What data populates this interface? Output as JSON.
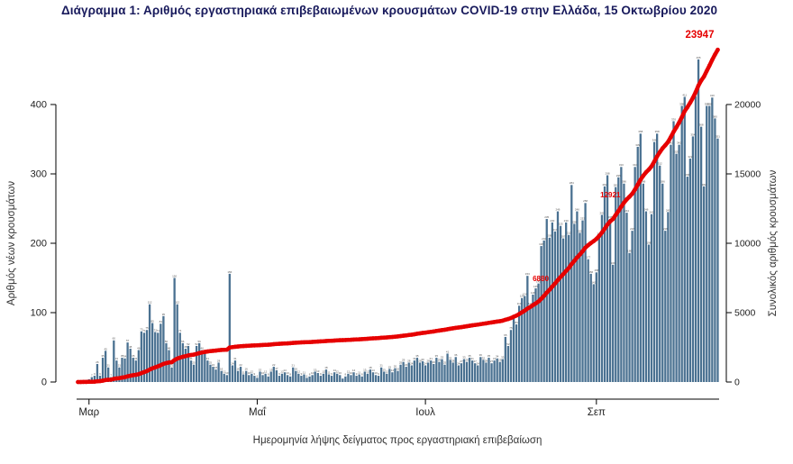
{
  "title": "Διάγραμμα 1: Αριθμός εργαστηριακά επιβεβαιωμένων κρουσμάτων COVID-19 στην Ελλάδα, 15 Οκτωβρίου 2020",
  "chart_data": {
    "type": "bar",
    "secondary_type": "line",
    "xlabel": "Ημερομηνία λήψης δείγματος προς εργαστηριακή επιβεβαίωση",
    "ylabel_left": "Αριθμός νέων κρουσμάτων",
    "ylabel_right": "Συνολικός αριθμός κρουσμάτων",
    "x_start_date": "2020-02-26",
    "x_end_date": "2020-10-15",
    "x_tick_labels": [
      "Μαρ",
      "Μαΐ",
      "Ιουλ",
      "Σεπ"
    ],
    "x_tick_day_indices": [
      4,
      65,
      126,
      188
    ],
    "y_left_ticks": [
      0,
      100,
      200,
      300,
      400
    ],
    "y_right_ticks": [
      0,
      5000,
      10000,
      15000,
      20000
    ],
    "ylim_left": [
      0,
      475
    ],
    "ylim_right": [
      0,
      23750
    ],
    "grid": false,
    "bar_color": "#4a7191",
    "line_color": "#e60000",
    "title_color": "#181a5c",
    "cumulative_total": 23947,
    "daily_new_cases": [
      1,
      2,
      1,
      3,
      4,
      7,
      9,
      26,
      9,
      35,
      45,
      21,
      7,
      60,
      31,
      21,
      35,
      34,
      57,
      48,
      35,
      31,
      46,
      73,
      71,
      75,
      112,
      85,
      72,
      71,
      84,
      95,
      56,
      46,
      21,
      150,
      112,
      71,
      56,
      48,
      52,
      31,
      25,
      52,
      56,
      46,
      41,
      31,
      25,
      22,
      18,
      28,
      16,
      12,
      10,
      156,
      24,
      31,
      16,
      22,
      11,
      16,
      10,
      12,
      9,
      6,
      15,
      10,
      12,
      8,
      15,
      22,
      17,
      9,
      12,
      14,
      10,
      8,
      21,
      16,
      12,
      9,
      11,
      6,
      8,
      10,
      15,
      13,
      9,
      12,
      18,
      11,
      9,
      14,
      12,
      10,
      5,
      8,
      12,
      10,
      14,
      9,
      11,
      8,
      15,
      12,
      18,
      14,
      10,
      9,
      21,
      15,
      12,
      19,
      14,
      20,
      16,
      25,
      29,
      22,
      28,
      24,
      31,
      35,
      28,
      30,
      24,
      28,
      31,
      26,
      35,
      29,
      33,
      25,
      41,
      32,
      28,
      36,
      24,
      27,
      33,
      29,
      35,
      31,
      27,
      24,
      36,
      32,
      28,
      35,
      27,
      31,
      34,
      29,
      33,
      65,
      52,
      75,
      92,
      83,
      110,
      121,
      124,
      153,
      110,
      126,
      135,
      142,
      196,
      204,
      235,
      208,
      230,
      217,
      246,
      225,
      207,
      230,
      212,
      284,
      228,
      246,
      215,
      233,
      258,
      177,
      156,
      141,
      158,
      211,
      241,
      282,
      298,
      235,
      169,
      281,
      295,
      310,
      286,
      244,
      186,
      218,
      310,
      339,
      358,
      286,
      246,
      198,
      242,
      346,
      358,
      312,
      286,
      218,
      245,
      342,
      376,
      329,
      342,
      398,
      411,
      296,
      322,
      354,
      412,
      465,
      368,
      282,
      398,
      398,
      410,
      380,
      351
    ],
    "annotations": [
      {
        "day_index": 172,
        "label": "6880"
      },
      {
        "day_index": 198,
        "label": "12921"
      },
      {
        "day_index": 232,
        "label": "23947"
      }
    ]
  }
}
